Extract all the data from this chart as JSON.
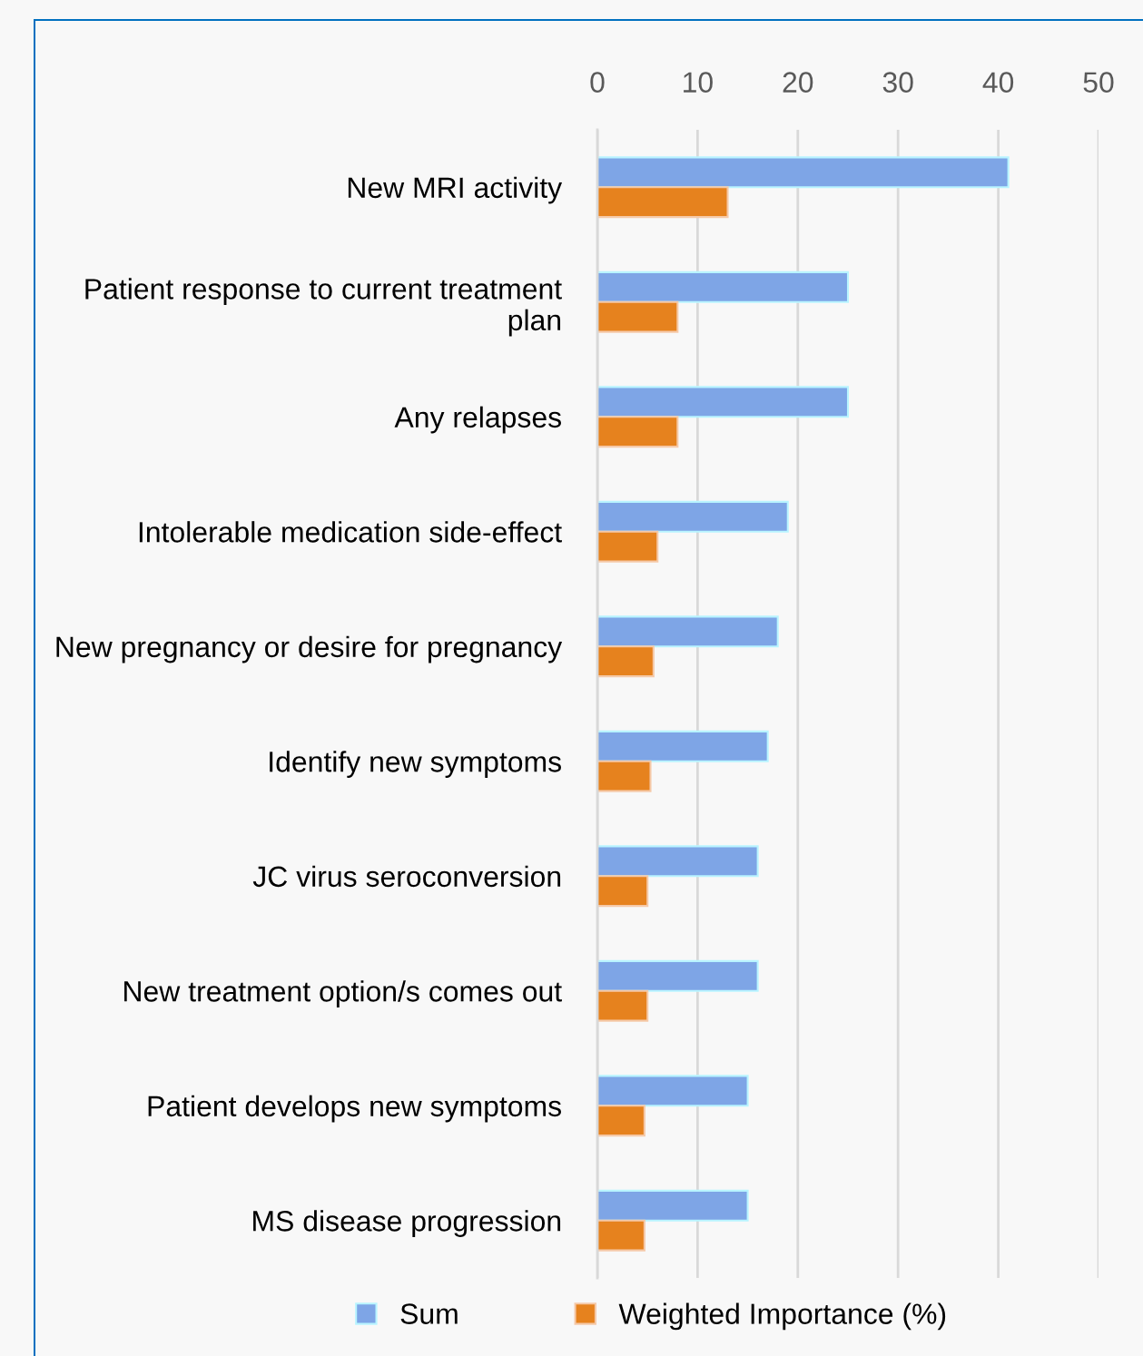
{
  "chart_data": {
    "type": "bar",
    "orientation": "horizontal",
    "categories": [
      "New MRI activity",
      "Patient response to current treatment\nplan",
      "Any relapses",
      "Intolerable medication side-effect",
      "New pregnancy or desire for pregnancy",
      "Identify new symptoms",
      "JC virus seroconversion",
      "New treatment option/s comes out",
      "Patient develops new symptoms",
      "MS disease progression"
    ],
    "series": [
      {
        "name": "Sum",
        "color": "#7ea5e6",
        "values": [
          41,
          25,
          25,
          19,
          18,
          17,
          16,
          16,
          15,
          15
        ]
      },
      {
        "name": "Weighted Importance (%)",
        "color": "#e6821e",
        "values": [
          13,
          8,
          8,
          6,
          5.6,
          5.3,
          5,
          5,
          4.7,
          4.7
        ]
      }
    ],
    "xlim": [
      0,
      50
    ],
    "xticks": [
      0,
      10,
      20,
      30,
      40,
      50
    ],
    "grid": "x",
    "legend": "bottom"
  }
}
